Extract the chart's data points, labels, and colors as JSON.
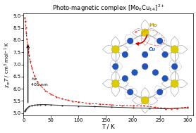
{
  "title": "Photo-magnetic complex [Mo$_6$Cu$_{14}$]$^{2+}$",
  "xlabel": "T / K",
  "ylabel": "$\\chi_m T$ / cm$^3$ mol$^{-1}$ K",
  "xlim": [
    0,
    310
  ],
  "ylim": [
    4.9,
    9.1
  ],
  "yticks": [
    5.0,
    5.5,
    6.0,
    6.5,
    7.0,
    7.5,
    8.0,
    8.5,
    9.0
  ],
  "xticks": [
    0,
    50,
    100,
    150,
    200,
    250,
    300
  ],
  "black_curve_color": "#222222",
  "red_curve_color": "#cc1100",
  "background_color": "#ffffff",
  "black_data_T": [
    2,
    3,
    5,
    7,
    10,
    15,
    20,
    25,
    30,
    40,
    50,
    70,
    100,
    130,
    160,
    200,
    230,
    260,
    280,
    300
  ],
  "black_data_chiT": [
    5.08,
    5.12,
    5.17,
    5.22,
    5.27,
    5.31,
    5.33,
    5.34,
    5.35,
    5.35,
    5.34,
    5.32,
    5.29,
    5.27,
    5.25,
    5.22,
    5.2,
    5.18,
    5.2,
    5.22
  ],
  "red_data_T": [
    2,
    3,
    4,
    5,
    6,
    7,
    8,
    9,
    10,
    12,
    15,
    20,
    25,
    30,
    40,
    50,
    60,
    70,
    80,
    90,
    100,
    120,
    140,
    160,
    180,
    200,
    220,
    240,
    260,
    270,
    280,
    290,
    300
  ],
  "red_data_chiT": [
    8.92,
    8.78,
    8.52,
    8.27,
    8.02,
    7.82,
    7.66,
    7.52,
    7.38,
    7.12,
    6.87,
    6.52,
    6.3,
    6.15,
    5.92,
    5.78,
    5.67,
    5.59,
    5.53,
    5.49,
    5.46,
    5.4,
    5.37,
    5.34,
    5.32,
    5.31,
    5.3,
    5.24,
    5.2,
    5.18,
    5.2,
    5.22,
    5.25
  ],
  "cu_color": "#2255bb",
  "mo_color": "#ddcc00",
  "ligand_color": "#7799bb",
  "bg_cluster_color": "#c8dff0",
  "arrow_color": "#cc0000",
  "cu_label_color": "#2255bb",
  "mo_label_color": "#ccaa00"
}
